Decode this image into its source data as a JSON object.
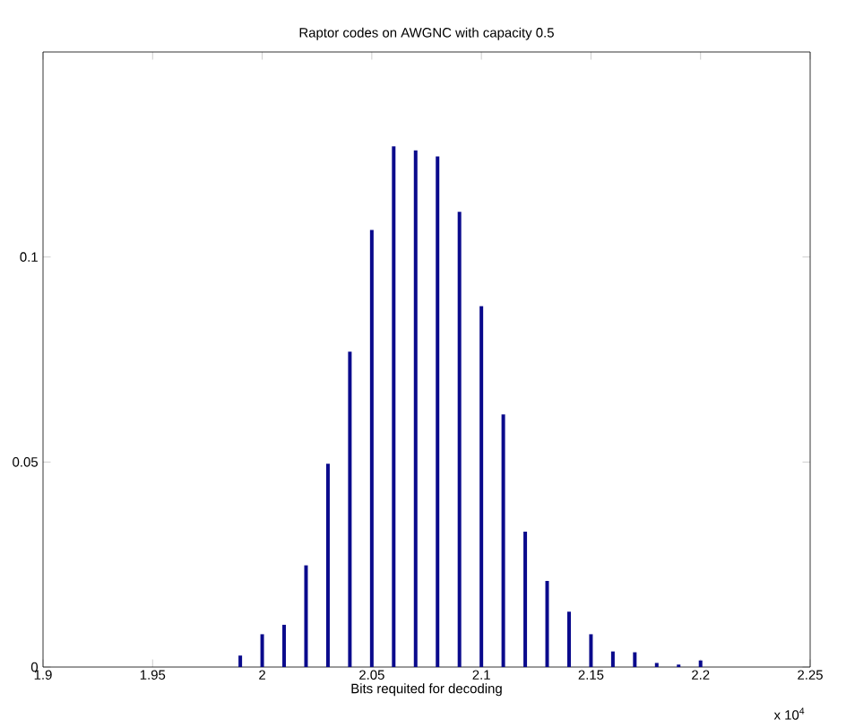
{
  "chart_data": {
    "type": "bar",
    "title": "Raptor codes on AWGNC with capacity 0.5",
    "xlabel": "Bits requited for decoding",
    "annotations": [
      "x 10$^{4}$"
    ],
    "x": [
      1.99,
      2.0,
      2.01,
      2.02,
      2.03,
      2.04,
      2.05,
      2.06,
      2.07,
      2.08,
      2.09,
      2.1,
      2.11,
      2.12,
      2.13,
      2.14,
      2.15,
      2.16,
      2.17,
      2.18,
      2.19,
      2.2
    ],
    "values": [
      0.0028,
      0.008,
      0.0103,
      0.0248,
      0.0496,
      0.0769,
      0.1066,
      0.127,
      0.126,
      0.1245,
      0.111,
      0.088,
      0.0616,
      0.033,
      0.021,
      0.0135,
      0.008,
      0.0038,
      0.0036,
      0.001,
      0.0006,
      0.0016
    ],
    "color": "#0a0a8c",
    "xlim": [
      1.9,
      2.25
    ],
    "xticks": [
      1.9,
      1.95,
      2,
      2.05,
      2.1,
      2.15,
      2.2,
      2.25
    ],
    "ylim": [
      0,
      0.15
    ],
    "yticks": [
      0,
      0.05,
      0.1
    ],
    "grid": false
  }
}
